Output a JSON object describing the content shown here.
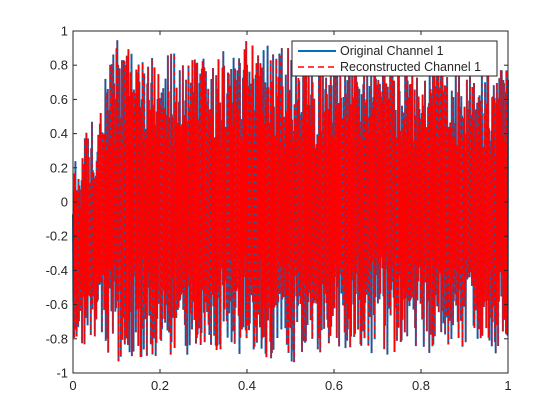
{
  "chart_data": {
    "type": "line",
    "title": "",
    "xlabel": "",
    "ylabel": "",
    "xlim": [
      0,
      1
    ],
    "ylim": [
      -1,
      1
    ],
    "x_ticks": [
      0,
      0.2,
      0.4,
      0.6,
      0.8,
      1
    ],
    "x_tick_labels": [
      "0",
      "0.2",
      "0.4",
      "0.6",
      "0.8",
      "1"
    ],
    "y_ticks": [
      -1,
      -0.8,
      -0.6,
      -0.4,
      -0.2,
      0,
      0.2,
      0.4,
      0.6,
      0.8,
      1
    ],
    "y_tick_labels": [
      "-1",
      "-0.8",
      "-0.6",
      "-0.4",
      "-0.2",
      "0",
      "0.2",
      "0.4",
      "0.6",
      "0.8",
      "1"
    ],
    "grid": false,
    "legend_position": "top-right",
    "series": [
      {
        "name": "Original Channel 1",
        "color": "#0072bd",
        "line_style": "solid",
        "x": [
          0,
          0.1,
          0.2,
          0.3,
          0.4,
          0.5,
          0.6,
          0.7,
          0.8,
          0.9,
          1.0
        ],
        "envelope_upper": [
          0.2,
          0.95,
          0.9,
          0.85,
          0.95,
          0.9,
          0.85,
          0.95,
          0.9,
          0.85,
          0.8
        ],
        "envelope_lower": [
          -0.8,
          -0.95,
          -0.9,
          -0.9,
          -0.9,
          -0.95,
          -0.85,
          -0.9,
          -0.9,
          -0.85,
          -0.9
        ]
      },
      {
        "name": "Reconstructed Channel 1",
        "color": "#ff0000",
        "line_style": "dashed",
        "x": [
          0,
          0.1,
          0.2,
          0.3,
          0.4,
          0.5,
          0.6,
          0.7,
          0.8,
          0.9,
          1.0
        ],
        "envelope_upper": [
          0.2,
          0.95,
          0.9,
          0.85,
          0.95,
          0.9,
          0.85,
          0.95,
          0.9,
          0.85,
          0.8
        ],
        "envelope_lower": [
          -0.8,
          -0.95,
          -0.9,
          -0.9,
          -0.9,
          -0.95,
          -0.85,
          -0.9,
          -0.9,
          -0.85,
          -0.9
        ]
      }
    ]
  }
}
